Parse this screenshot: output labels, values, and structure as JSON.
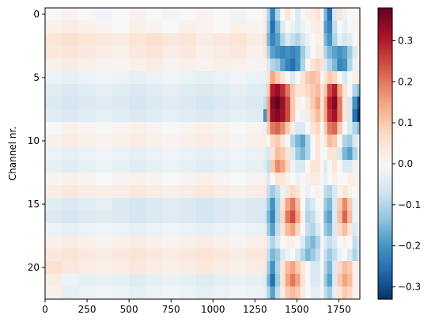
{
  "chart_data": {
    "type": "heatmap",
    "title": "",
    "xlabel": "",
    "ylabel": "Channel nr.",
    "xlim": [
      0,
      1875
    ],
    "ylim": [
      22.5,
      -0.5
    ],
    "x_ticks": [
      0,
      250,
      500,
      750,
      1000,
      1250,
      1500,
      1750
    ],
    "y_ticks": [
      0,
      5,
      10,
      15,
      20
    ],
    "n_rows": 23,
    "colorbar": {
      "vmin": -0.33,
      "vmax": 0.38,
      "ticks": [
        0.3,
        0.2,
        0.1,
        0.0,
        -0.1,
        -0.2,
        -0.3
      ],
      "tick_labels": [
        "0.3",
        "0.2",
        "0.1",
        "0.0",
        "−0.1",
        "−0.2",
        "−0.3"
      ],
      "colormap": "RdBu_r"
    },
    "x_grid": [
      0,
      100,
      200,
      300,
      400,
      500,
      600,
      700,
      800,
      900,
      1000,
      1100,
      1200,
      1300,
      1320,
      1340,
      1370,
      1400,
      1430,
      1460,
      1490,
      1520,
      1550,
      1580,
      1610,
      1640,
      1660,
      1680,
      1710,
      1740,
      1770,
      1800,
      1830,
      1860
    ],
    "values": [
      [
        0.0,
        0.01,
        0.0,
        -0.01,
        0.0,
        0.01,
        0.0,
        -0.01,
        0.0,
        0.01,
        0.0,
        -0.01,
        0.0,
        0.02,
        -0.1,
        -0.22,
        -0.1,
        0.0,
        0.05,
        0.0,
        -0.05,
        0.0,
        0.02,
        0.03,
        0.05,
        0.0,
        -0.15,
        -0.25,
        -0.05,
        0.05,
        -0.02,
        0.0,
        0.0,
        0.01
      ],
      [
        0.02,
        0.03,
        0.02,
        0.01,
        0.0,
        0.02,
        0.01,
        0.0,
        0.02,
        0.01,
        0.0,
        0.02,
        0.01,
        0.03,
        -0.12,
        -0.25,
        -0.15,
        -0.05,
        0.0,
        -0.02,
        -0.05,
        -0.02,
        0.0,
        0.02,
        0.03,
        0.01,
        -0.18,
        -0.22,
        -0.08,
        0.0,
        -0.03,
        0.0,
        0.01,
        0.02
      ],
      [
        0.05,
        0.06,
        0.05,
        0.04,
        0.03,
        0.05,
        0.06,
        0.04,
        0.05,
        0.03,
        0.04,
        0.05,
        0.03,
        0.05,
        -0.15,
        -0.22,
        -0.18,
        -0.1,
        -0.05,
        -0.08,
        -0.1,
        -0.06,
        -0.02,
        0.0,
        0.02,
        0.02,
        -0.15,
        -0.2,
        -0.1,
        -0.03,
        -0.06,
        -0.04,
        0.0,
        0.03
      ],
      [
        0.04,
        0.05,
        0.04,
        0.03,
        0.02,
        0.04,
        0.05,
        0.03,
        0.04,
        0.02,
        0.03,
        0.04,
        0.02,
        0.04,
        -0.1,
        -0.18,
        -0.2,
        -0.22,
        -0.2,
        -0.22,
        -0.2,
        -0.12,
        -0.05,
        0.0,
        0.03,
        0.03,
        -0.1,
        -0.15,
        -0.18,
        -0.2,
        -0.18,
        -0.12,
        -0.05,
        0.0
      ],
      [
        0.02,
        0.03,
        0.02,
        0.01,
        0.01,
        0.02,
        0.03,
        0.01,
        0.02,
        0.01,
        0.02,
        0.02,
        0.01,
        0.02,
        -0.05,
        -0.1,
        -0.12,
        -0.18,
        -0.22,
        -0.25,
        -0.2,
        -0.1,
        0.0,
        0.05,
        0.08,
        0.05,
        -0.05,
        -0.1,
        -0.15,
        -0.22,
        -0.2,
        -0.1,
        -0.02,
        0.02
      ],
      [
        -0.02,
        -0.03,
        -0.02,
        -0.01,
        -0.02,
        -0.03,
        -0.02,
        -0.01,
        -0.02,
        -0.03,
        -0.02,
        -0.01,
        -0.02,
        -0.03,
        0.05,
        0.15,
        0.1,
        0.05,
        0.0,
        -0.05,
        0.0,
        0.05,
        0.1,
        0.12,
        0.1,
        0.0,
        0.05,
        0.1,
        0.08,
        0.0,
        -0.05,
        0.0,
        0.02,
        0.05
      ],
      [
        -0.04,
        -0.05,
        -0.04,
        -0.03,
        -0.04,
        -0.05,
        -0.04,
        -0.03,
        -0.04,
        -0.05,
        -0.04,
        -0.03,
        -0.04,
        -0.05,
        0.1,
        0.3,
        0.33,
        0.28,
        0.2,
        0.1,
        0.05,
        0.05,
        0.08,
        0.1,
        0.12,
        0.05,
        0.1,
        0.25,
        0.3,
        0.15,
        0.05,
        0.0,
        -0.1,
        -0.15
      ],
      [
        -0.05,
        -0.06,
        -0.05,
        -0.04,
        -0.05,
        -0.06,
        -0.05,
        -0.04,
        -0.05,
        -0.06,
        -0.05,
        -0.04,
        -0.05,
        -0.08,
        0.15,
        0.35,
        0.38,
        0.33,
        0.25,
        0.1,
        0.02,
        0.0,
        0.05,
        0.1,
        0.15,
        0.05,
        0.15,
        0.3,
        0.35,
        0.2,
        0.05,
        -0.05,
        -0.2,
        -0.3
      ],
      [
        -0.04,
        -0.05,
        -0.04,
        -0.03,
        -0.04,
        -0.05,
        -0.04,
        -0.03,
        -0.04,
        -0.05,
        -0.04,
        -0.03,
        -0.04,
        -0.2,
        0.15,
        0.33,
        0.35,
        0.32,
        0.25,
        0.1,
        0.0,
        -0.02,
        0.03,
        0.08,
        0.12,
        0.05,
        0.15,
        0.28,
        0.32,
        0.2,
        0.05,
        -0.05,
        -0.25,
        -0.33
      ],
      [
        0.0,
        0.02,
        0.01,
        0.0,
        0.01,
        0.02,
        0.01,
        0.0,
        0.01,
        0.02,
        0.01,
        0.0,
        0.01,
        -0.02,
        0.1,
        0.2,
        0.22,
        0.18,
        0.1,
        0.02,
        -0.05,
        -0.05,
        0.0,
        0.05,
        0.08,
        0.0,
        0.1,
        0.2,
        0.22,
        0.1,
        0.0,
        -0.05,
        -0.1,
        -0.15
      ],
      [
        0.02,
        0.03,
        0.02,
        0.01,
        0.02,
        0.03,
        0.02,
        0.01,
        0.02,
        0.03,
        0.02,
        0.01,
        0.02,
        0.03,
        0.0,
        0.08,
        0.1,
        0.05,
        0.0,
        -0.1,
        -0.15,
        -0.18,
        -0.1,
        0.0,
        0.05,
        0.0,
        0.05,
        0.12,
        0.1,
        0.0,
        -0.1,
        -0.12,
        -0.05,
        0.0
      ],
      [
        -0.02,
        -0.03,
        -0.02,
        -0.01,
        -0.02,
        -0.03,
        -0.02,
        -0.01,
        -0.02,
        -0.03,
        -0.02,
        -0.01,
        -0.02,
        -0.03,
        -0.05,
        0.05,
        0.12,
        0.1,
        0.05,
        -0.05,
        -0.12,
        -0.15,
        -0.1,
        0.0,
        0.05,
        0.0,
        0.0,
        0.05,
        0.05,
        -0.05,
        -0.15,
        -0.18,
        -0.1,
        -0.02
      ],
      [
        -0.03,
        -0.04,
        -0.03,
        -0.02,
        -0.03,
        -0.04,
        -0.03,
        -0.02,
        -0.03,
        -0.04,
        -0.03,
        -0.02,
        -0.03,
        -0.04,
        -0.08,
        0.1,
        0.18,
        0.15,
        0.08,
        -0.02,
        -0.05,
        -0.05,
        0.0,
        0.05,
        0.05,
        0.0,
        -0.05,
        0.0,
        0.05,
        0.0,
        -0.05,
        -0.05,
        -0.02,
        0.0
      ],
      [
        0.01,
        0.02,
        0.01,
        0.0,
        0.01,
        0.02,
        0.01,
        0.0,
        0.01,
        0.02,
        0.01,
        0.0,
        0.01,
        0.02,
        -0.05,
        0.0,
        0.05,
        0.05,
        0.02,
        0.0,
        -0.02,
        0.0,
        0.02,
        0.03,
        0.03,
        0.0,
        -0.03,
        0.0,
        0.02,
        0.0,
        0.0,
        0.02,
        0.02,
        0.01
      ],
      [
        0.03,
        0.04,
        0.03,
        0.02,
        0.03,
        0.04,
        0.03,
        0.02,
        0.03,
        0.04,
        0.03,
        0.02,
        0.03,
        0.04,
        -0.08,
        -0.12,
        -0.08,
        -0.02,
        0.05,
        0.08,
        0.05,
        0.0,
        -0.02,
        0.0,
        0.02,
        0.0,
        -0.08,
        -0.1,
        -0.05,
        0.02,
        0.05,
        0.02,
        0.0,
        0.02
      ],
      [
        -0.04,
        -0.05,
        -0.04,
        -0.03,
        -0.05,
        -0.06,
        -0.05,
        -0.04,
        -0.05,
        -0.06,
        -0.05,
        -0.04,
        -0.05,
        -0.05,
        -0.12,
        -0.2,
        -0.1,
        0.05,
        0.15,
        0.2,
        0.12,
        0.0,
        -0.08,
        -0.05,
        0.0,
        0.0,
        -0.12,
        -0.15,
        -0.05,
        0.1,
        0.18,
        0.1,
        -0.02,
        0.0
      ],
      [
        -0.05,
        -0.06,
        -0.05,
        -0.04,
        -0.05,
        -0.06,
        -0.05,
        -0.04,
        -0.05,
        -0.06,
        -0.05,
        -0.04,
        -0.05,
        -0.06,
        -0.15,
        -0.22,
        -0.1,
        0.08,
        0.2,
        0.25,
        0.15,
        0.02,
        -0.1,
        -0.08,
        -0.02,
        0.0,
        -0.15,
        -0.18,
        -0.05,
        0.12,
        0.22,
        0.12,
        -0.02,
        0.0
      ],
      [
        -0.02,
        -0.03,
        -0.02,
        -0.01,
        -0.02,
        -0.03,
        -0.02,
        -0.01,
        -0.02,
        -0.03,
        -0.02,
        -0.01,
        -0.02,
        -0.03,
        -0.12,
        -0.18,
        -0.08,
        0.05,
        0.12,
        0.15,
        0.08,
        0.0,
        -0.08,
        -0.1,
        -0.05,
        0.0,
        -0.12,
        -0.15,
        -0.05,
        0.08,
        0.12,
        0.05,
        -0.05,
        -0.02
      ],
      [
        0.02,
        0.03,
        0.02,
        0.01,
        0.02,
        0.03,
        0.02,
        0.01,
        0.02,
        0.03,
        0.02,
        0.01,
        0.02,
        0.03,
        -0.05,
        -0.1,
        -0.05,
        0.0,
        0.02,
        0.02,
        0.0,
        -0.05,
        -0.12,
        -0.15,
        -0.1,
        0.0,
        -0.05,
        -0.08,
        -0.05,
        0.0,
        0.02,
        0.0,
        -0.08,
        -0.05
      ],
      [
        0.04,
        0.05,
        0.04,
        0.03,
        0.04,
        0.05,
        0.04,
        0.03,
        0.04,
        0.05,
        0.04,
        0.03,
        0.04,
        0.05,
        -0.08,
        -0.15,
        -0.12,
        -0.05,
        -0.02,
        0.0,
        -0.05,
        -0.1,
        -0.15,
        -0.12,
        -0.08,
        0.0,
        -0.08,
        -0.12,
        -0.08,
        -0.02,
        0.0,
        -0.05,
        -0.1,
        -0.05
      ],
      [
        0.06,
        0.04,
        0.03,
        0.02,
        0.03,
        0.04,
        0.03,
        0.02,
        0.03,
        0.04,
        0.03,
        0.02,
        0.03,
        0.04,
        -0.12,
        -0.2,
        -0.1,
        0.05,
        0.12,
        0.15,
        0.1,
        0.05,
        0.0,
        -0.05,
        -0.05,
        0.0,
        -0.1,
        -0.15,
        -0.05,
        0.08,
        0.12,
        0.1,
        0.02,
        0.0
      ],
      [
        0.03,
        -0.02,
        -0.03,
        -0.02,
        -0.03,
        -0.04,
        -0.03,
        -0.02,
        -0.03,
        -0.04,
        -0.03,
        -0.02,
        -0.03,
        -0.04,
        -0.15,
        -0.25,
        -0.12,
        0.05,
        0.15,
        0.2,
        0.15,
        0.05,
        0.0,
        -0.05,
        -0.05,
        0.0,
        -0.12,
        -0.18,
        -0.05,
        0.1,
        0.15,
        0.12,
        0.02,
        0.0
      ],
      [
        0.02,
        -0.03,
        -0.02,
        -0.01,
        -0.02,
        -0.03,
        -0.02,
        -0.01,
        -0.02,
        -0.03,
        -0.02,
        -0.01,
        -0.02,
        -0.03,
        -0.1,
        -0.18,
        -0.08,
        0.03,
        0.1,
        0.12,
        0.1,
        0.03,
        0.0,
        -0.03,
        -0.03,
        0.0,
        -0.08,
        -0.12,
        -0.03,
        0.05,
        0.1,
        0.08,
        0.02,
        0.0
      ]
    ]
  }
}
